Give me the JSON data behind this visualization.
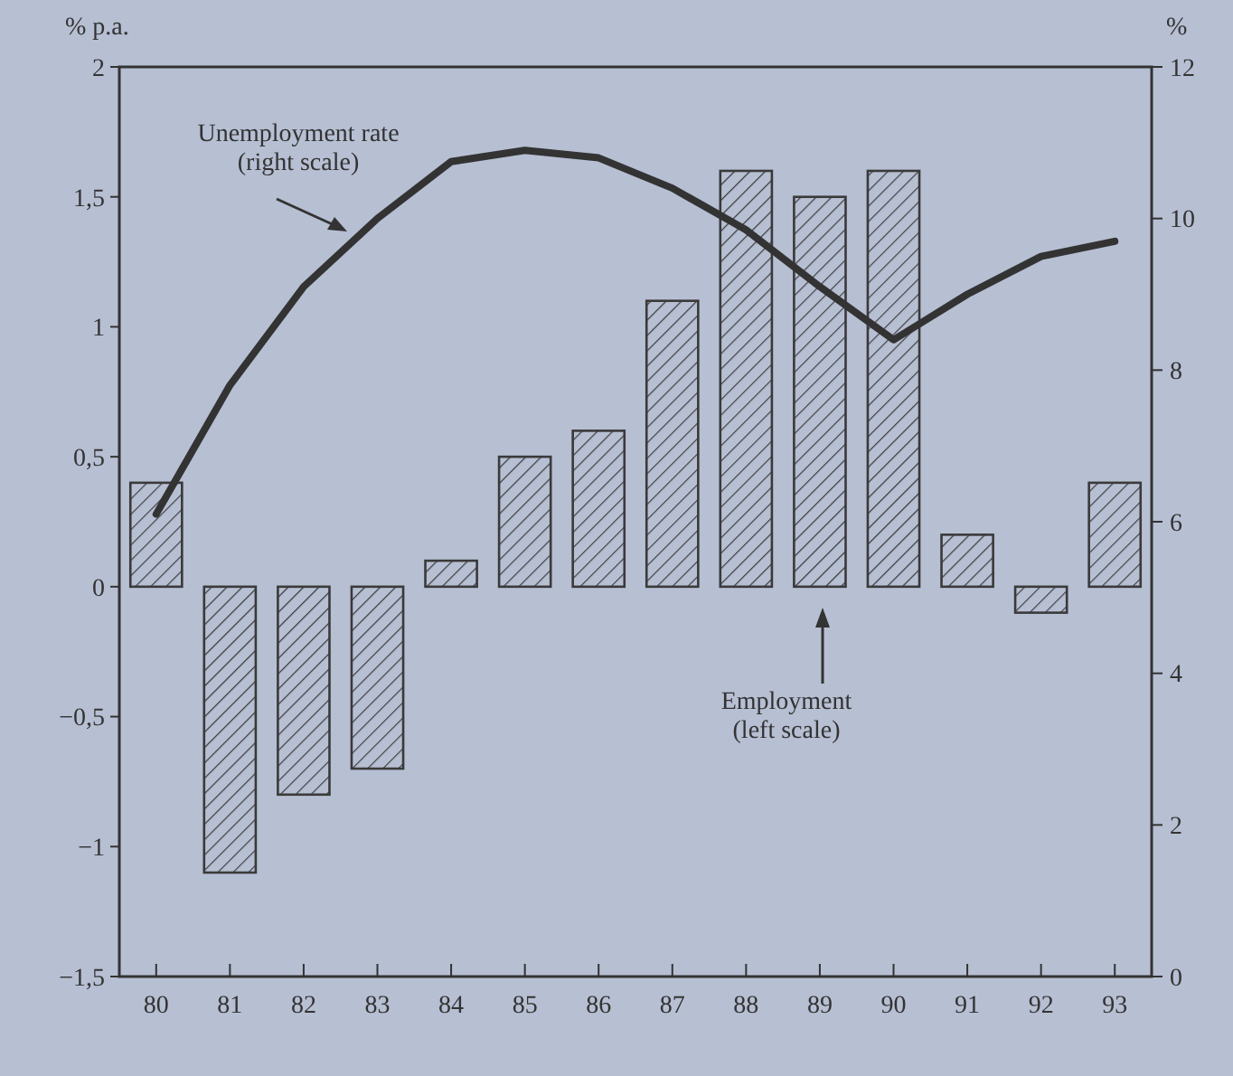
{
  "chart_data": {
    "type": "bar",
    "categories": [
      "80",
      "81",
      "82",
      "83",
      "84",
      "85",
      "86",
      "87",
      "88",
      "89",
      "90",
      "91",
      "92",
      "93"
    ],
    "ylabel": "% p.a.",
    "y2label": "%",
    "series": [
      {
        "color": "#3a3a3a",
        "values": [
          0.4,
          -1.1,
          -0.8,
          -0.7,
          0.1,
          0.5,
          0.6,
          1.1,
          1.6,
          1.5,
          1.6,
          0.2,
          -0.1,
          0.4
        ]
      },
      {
        "type": "line",
        "axis": "y2",
        "color": "#333333",
        "values": [
          6.1,
          7.8,
          9.1,
          10.0,
          10.75,
          10.9,
          10.8,
          10.4,
          9.85,
          9.1,
          8.4,
          9.0,
          9.5,
          9.7
        ]
      }
    ],
    "ylim": [
      -1.5,
      2
    ],
    "yticks": [
      {
        "value": -1.5,
        "label": "−1,5"
      },
      {
        "value": -1,
        "label": "−1"
      },
      {
        "value": -0.5,
        "label": "−0,5"
      },
      0,
      {
        "value": 0.5,
        "label": "0,5"
      },
      1,
      {
        "value": 1.5,
        "label": "1,5"
      },
      2
    ],
    "y2lim": [
      0,
      12
    ],
    "y2ticks": [
      0,
      2,
      4,
      6,
      8,
      10,
      12
    ],
    "annotations": [
      "Unemployment rate\n(right scale)",
      "Employment\n(left scale)"
    ],
    "grid": false,
    "marker": "none",
    "line_style": "solid"
  }
}
